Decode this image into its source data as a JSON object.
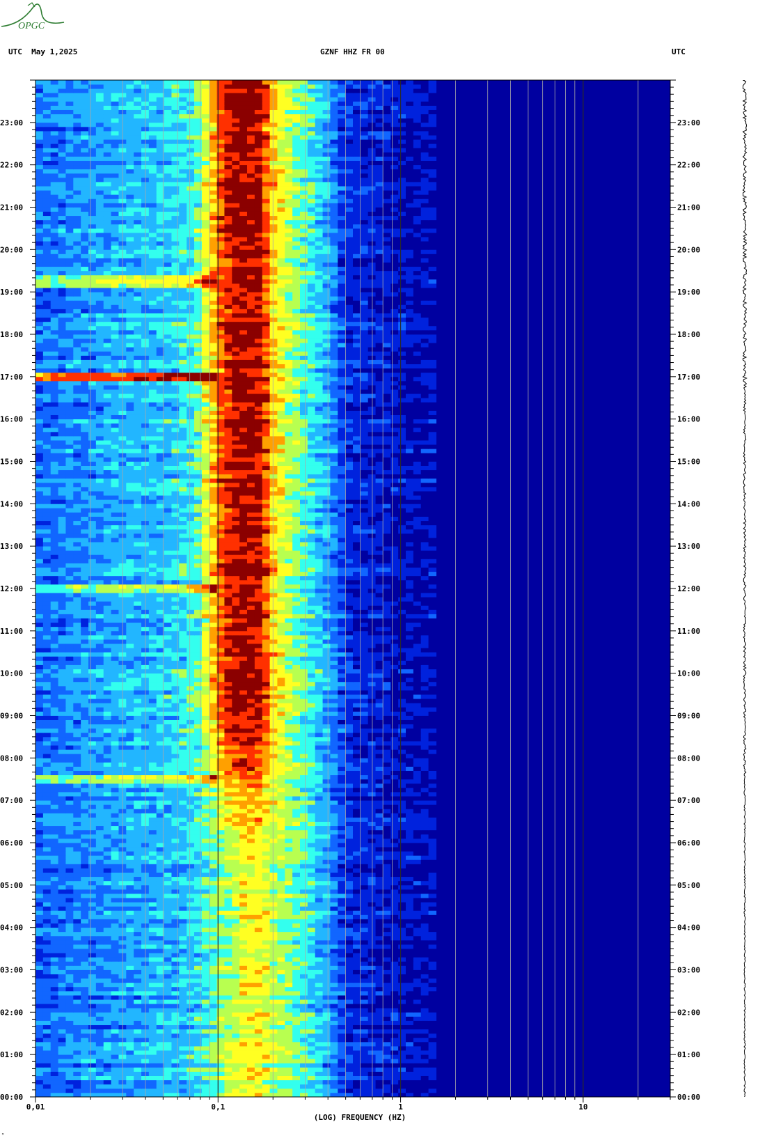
{
  "header": {
    "left": "UTC  May 1,2025",
    "center": "GZNF HHZ FR 00",
    "right": "UTC"
  },
  "logo": {
    "text": "OPGC",
    "color": "#2e7d32"
  },
  "chart_data": {
    "type": "heatmap",
    "title": "GZNF HHZ FR 00",
    "xlabel": "(LOG) FREQUENCY (HZ)",
    "ylabel": "",
    "x_scale": "log",
    "xlim": [
      0.01,
      30
    ],
    "ylim": [
      0,
      24
    ],
    "x_tick_labels": [
      {
        "value": 0.01,
        "label": "0,01"
      },
      {
        "value": 0.1,
        "label": "0,1"
      },
      {
        "value": 1,
        "label": "1"
      },
      {
        "value": 10,
        "label": "10"
      }
    ],
    "y_tick_labels": [
      "00:00",
      "01:00",
      "02:00",
      "03:00",
      "04:00",
      "05:00",
      "06:00",
      "07:00",
      "08:00",
      "09:00",
      "10:00",
      "11:00",
      "12:00",
      "13:00",
      "14:00",
      "15:00",
      "16:00",
      "17:00",
      "18:00",
      "19:00",
      "20:00",
      "21:00",
      "22:00",
      "23:00"
    ],
    "hour_values": [
      0,
      1,
      2,
      3,
      4,
      5,
      6,
      7,
      8,
      9,
      10,
      11,
      12,
      13,
      14,
      15,
      16,
      17,
      18,
      19,
      20,
      21,
      22,
      23
    ],
    "colormap": [
      "#0000a0",
      "#0022dd",
      "#1166ff",
      "#22b6ff",
      "#33ffee",
      "#b8ff50",
      "#ffff22",
      "#ffa000",
      "#ff3000",
      "#8b0000"
    ],
    "power_profile": {
      "frequency_hz": [
        0.01,
        0.025,
        0.05,
        0.075,
        0.1,
        0.12,
        0.14,
        0.17,
        0.2,
        0.25,
        0.3,
        0.4,
        0.5,
        1,
        2,
        30
      ],
      "level_early": [
        0.2,
        0.28,
        0.32,
        0.38,
        0.5,
        0.55,
        0.66,
        0.66,
        0.56,
        0.5,
        0.44,
        0.3,
        0.12,
        0.05,
        0.03,
        0.02
      ],
      "level_late": [
        0.22,
        0.32,
        0.36,
        0.44,
        0.82,
        0.97,
        0.99,
        0.97,
        0.72,
        0.56,
        0.46,
        0.32,
        0.12,
        0.05,
        0.03,
        0.02
      ]
    },
    "events_hour": [
      17.0,
      7.5,
      19.25,
      12.0
    ],
    "colors": {
      "grid": "#a9a9a9",
      "grid_decade": "#2a2a2a"
    }
  }
}
